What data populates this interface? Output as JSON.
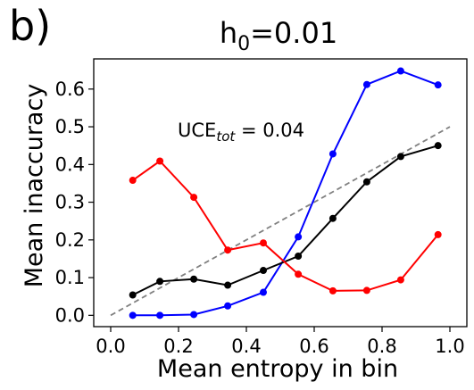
{
  "panel_label": "b)",
  "chart_data": {
    "type": "line",
    "title_main": "h",
    "title_sub": "0",
    "title_rest": "=0.01",
    "xlabel": "Mean entropy in bin",
    "ylabel": "Mean inaccuracy",
    "xlim": [
      -0.05,
      1.05
    ],
    "ylim": [
      -0.03,
      0.68
    ],
    "xticks": [
      "0.0",
      "0.2",
      "0.4",
      "0.6",
      "0.8",
      "1.0"
    ],
    "xtick_values": [
      0.0,
      0.2,
      0.4,
      0.6,
      0.8,
      1.0
    ],
    "yticks": [
      "0.0",
      "0.1",
      "0.2",
      "0.3",
      "0.4",
      "0.5",
      "0.6"
    ],
    "ytick_values": [
      0.0,
      0.1,
      0.2,
      0.3,
      0.4,
      0.5,
      0.6
    ],
    "grid": false,
    "annotation": {
      "text_main": "UCE",
      "text_sub": "tot",
      "text_rest": " = 0.04"
    },
    "reference_line": {
      "x": [
        0.0,
        1.0
      ],
      "y": [
        0.0,
        0.5
      ],
      "color": "#808080",
      "style": "dashed"
    },
    "series": [
      {
        "color": "#0000ff",
        "x": [
          0.065,
          0.145,
          0.245,
          0.345,
          0.45,
          0.553,
          0.655,
          0.755,
          0.855,
          0.965
        ],
        "y": [
          0.0,
          0.0,
          0.002,
          0.025,
          0.061,
          0.208,
          0.428,
          0.612,
          0.648,
          0.611
        ]
      },
      {
        "color": "#000000",
        "x": [
          0.065,
          0.145,
          0.245,
          0.345,
          0.45,
          0.553,
          0.655,
          0.755,
          0.855,
          0.965
        ],
        "y": [
          0.054,
          0.09,
          0.096,
          0.08,
          0.119,
          0.157,
          0.257,
          0.354,
          0.421,
          0.45
        ]
      },
      {
        "color": "#ff0000",
        "x": [
          0.065,
          0.145,
          0.245,
          0.345,
          0.45,
          0.553,
          0.655,
          0.755,
          0.855,
          0.965
        ],
        "y": [
          0.358,
          0.409,
          0.313,
          0.173,
          0.192,
          0.109,
          0.065,
          0.066,
          0.094,
          0.214
        ]
      }
    ]
  }
}
